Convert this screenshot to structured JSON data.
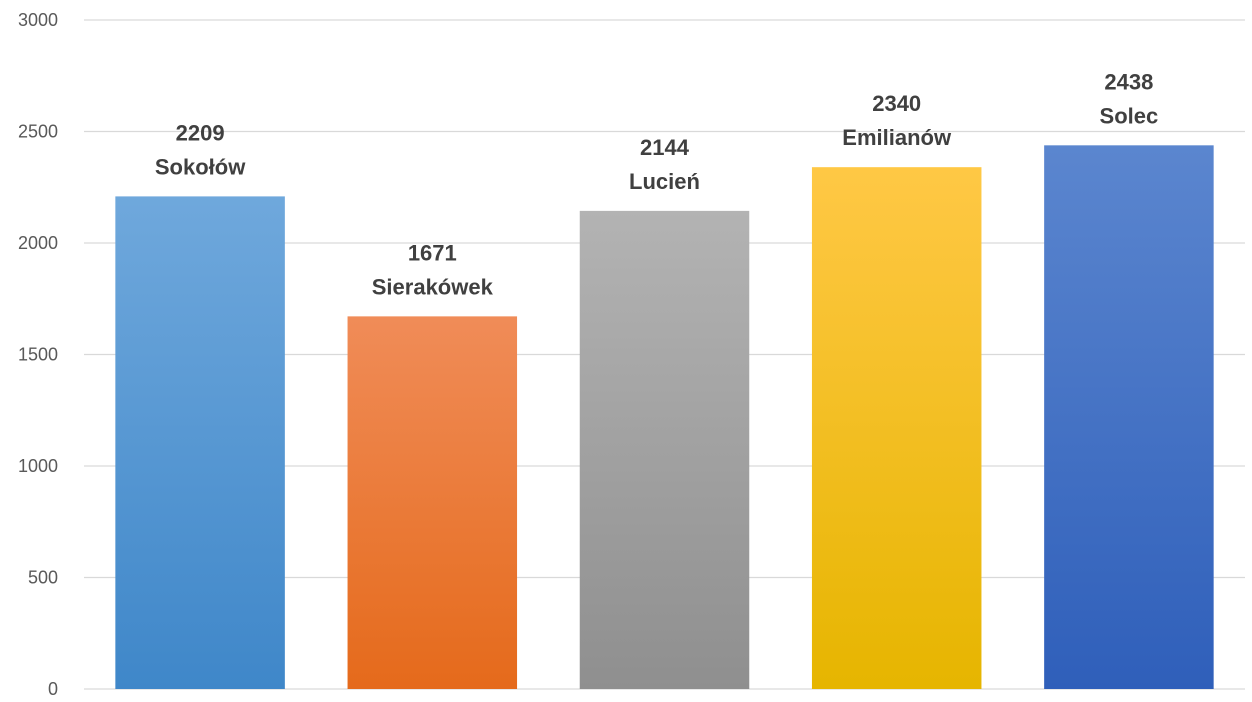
{
  "chart_data": {
    "type": "bar",
    "categories": [
      "Sokołów",
      "Sierakówek",
      "Lucień",
      "Emilianów",
      "Solec"
    ],
    "values": [
      2209,
      1671,
      2144,
      2340,
      2438
    ],
    "ylim": [
      0,
      3000
    ],
    "yticks": [
      "0",
      "500",
      "1000",
      "1500",
      "2000",
      "2500",
      "3000"
    ],
    "grid": true,
    "legend": "none",
    "data_labels": [
      "2209",
      "1671",
      "2144",
      "2340",
      "2438"
    ],
    "colors": [
      [
        "#6fa8dc",
        "#3f87c9"
      ],
      [
        "#f08c58",
        "#e56a1b"
      ],
      [
        "#b3b3b3",
        "#8f8f8f"
      ],
      [
        "#ffc845",
        "#e6b500"
      ],
      [
        "#5b86cf",
        "#2f5fba"
      ]
    ]
  }
}
